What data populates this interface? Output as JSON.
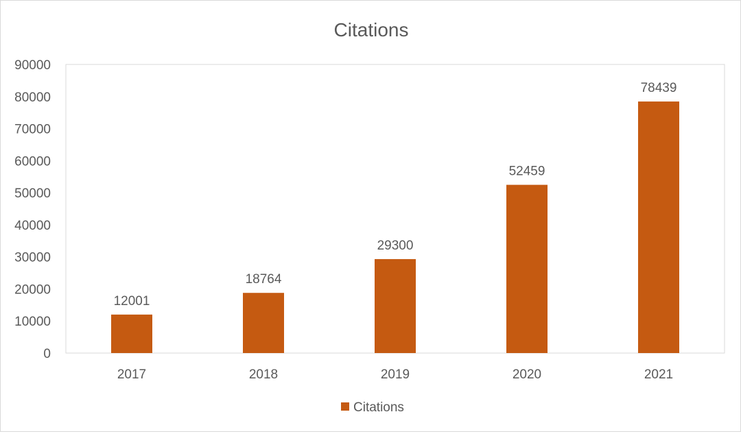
{
  "chart_data": {
    "type": "bar",
    "title": "Citations",
    "xlabel": "",
    "ylabel": "",
    "categories": [
      "2017",
      "2018",
      "2019",
      "2020",
      "2021"
    ],
    "series": [
      {
        "name": "Citations",
        "values": [
          12001,
          18764,
          29300,
          52459,
          78439
        ],
        "color": "#C55A11"
      }
    ],
    "ylim": [
      0,
      90000
    ],
    "yticks": [
      "0",
      "10000",
      "20000",
      "30000",
      "40000",
      "50000",
      "60000",
      "70000",
      "80000",
      "90000"
    ],
    "data_labels": [
      "12001",
      "18764",
      "29300",
      "52459",
      "78439"
    ],
    "grid": false,
    "legend": {
      "position": "bottom",
      "entries": [
        "Citations"
      ]
    }
  }
}
